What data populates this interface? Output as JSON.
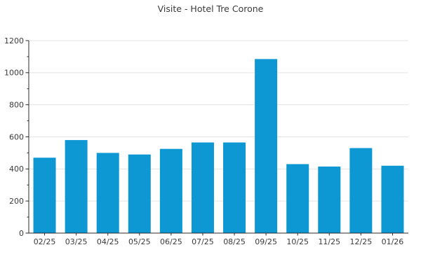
{
  "chart_data": {
    "type": "bar",
    "title": "Visite - Hotel Tre Corone",
    "categories": [
      "02/25",
      "03/25",
      "04/25",
      "05/25",
      "06/25",
      "07/25",
      "08/25",
      "09/25",
      "10/25",
      "11/25",
      "12/25",
      "01/26"
    ],
    "values": [
      470,
      580,
      500,
      490,
      525,
      565,
      565,
      1085,
      430,
      415,
      530,
      420
    ],
    "xlabel": "",
    "ylabel": "",
    "ylim": [
      0,
      1200
    ],
    "yticks": [
      0,
      200,
      400,
      600,
      800,
      1000,
      1200
    ],
    "minor_ytick_step": 100,
    "grid": "horizontal-only",
    "legend_position": "none",
    "colors": {
      "bar": "#0d98d4",
      "grid": "#e3e3e3",
      "axis": "#2b2b2b",
      "text": "#3a3a3a",
      "background": "#ffffff"
    }
  }
}
